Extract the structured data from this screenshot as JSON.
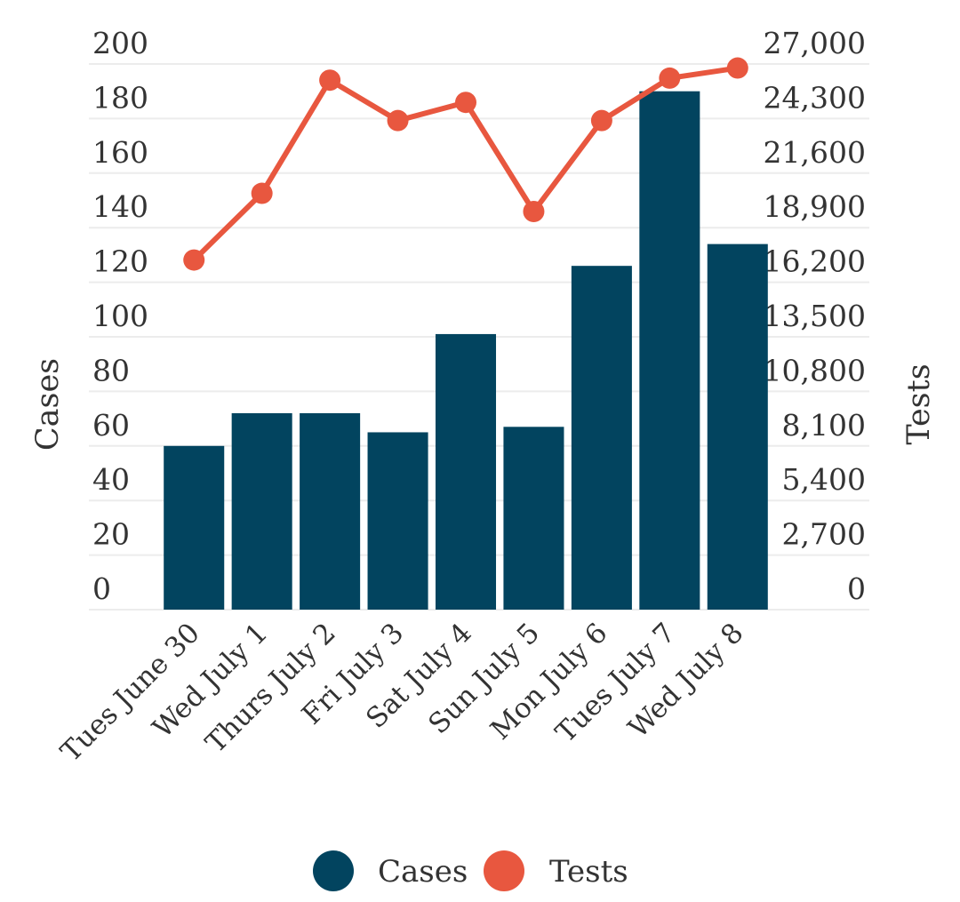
{
  "chart_data": {
    "type": "bar",
    "categories": [
      "Tues June 30",
      "Wed July 1",
      "Thurs July 2",
      "Fri July 3",
      "Sat July 4",
      "Sun July 5",
      "Mon July 6",
      "Tues July 7",
      "Wed July 8"
    ],
    "series": [
      {
        "name": "Cases",
        "type": "bar",
        "axis": "left",
        "values": [
          60,
          72,
          72,
          65,
          101,
          67,
          126,
          190,
          134
        ]
      },
      {
        "name": "Tests",
        "type": "line",
        "axis": "right",
        "values": [
          17300,
          20600,
          26200,
          24200,
          25100,
          19700,
          24200,
          26300,
          26800
        ]
      }
    ],
    "ylabel": "Cases",
    "y2label": "Tests",
    "ylim": [
      0,
      200
    ],
    "y2lim": [
      0,
      27000
    ],
    "yticks": [
      0,
      20,
      40,
      60,
      80,
      100,
      120,
      140,
      160,
      180,
      200
    ],
    "y2ticks": [
      "0",
      "2,700",
      "5,400",
      "8,100",
      "10,800",
      "13,500",
      "16,200",
      "18,900",
      "21,600",
      "24,300",
      "27,000"
    ],
    "grid": true,
    "legend": "bottom",
    "colors": {
      "Cases": "#02445f",
      "Tests": "#e8573f"
    }
  }
}
